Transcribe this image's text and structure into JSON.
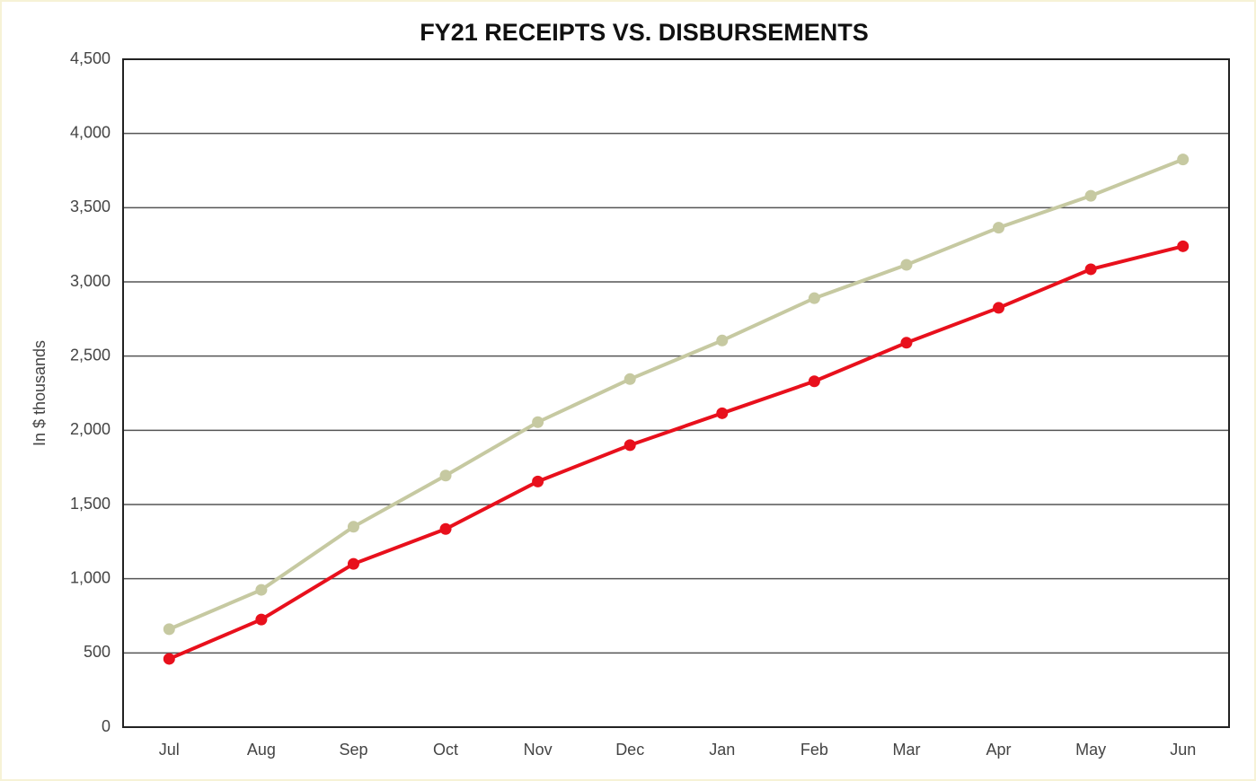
{
  "chart_data": {
    "type": "line",
    "title": "FY21 RECEIPTS VS. DISBURSEMENTS",
    "y_label": "In $ thousands",
    "categories": [
      "Jul",
      "Aug",
      "Sep",
      "Oct",
      "Nov",
      "Dec",
      "Jan",
      "Feb",
      "Mar",
      "Apr",
      "May",
      "Jun"
    ],
    "series": [
      {
        "color": "#c6c9a1",
        "values": [
          660,
          925,
          1350,
          1695,
          2055,
          2345,
          2605,
          2890,
          3115,
          3365,
          3580,
          3825
        ]
      },
      {
        "color": "#e8101c",
        "values": [
          460,
          725,
          1100,
          1335,
          1655,
          1900,
          2115,
          2330,
          2590,
          2825,
          3085,
          3240
        ]
      }
    ],
    "ylim": [
      0,
      4500
    ],
    "yticks": [
      0,
      500,
      {
        "value": 1000,
        "label": "1,000"
      },
      {
        "value": 1500,
        "label": "1,500"
      },
      {
        "value": 2000,
        "label": "2,000"
      },
      {
        "value": 2500,
        "label": "2,500"
      },
      {
        "value": 3000,
        "label": "3,000"
      },
      {
        "value": 3500,
        "label": "3,500"
      },
      {
        "value": 4000,
        "label": "4,000"
      },
      {
        "value": 4500,
        "label": "4,500"
      }
    ],
    "grid": true
  }
}
